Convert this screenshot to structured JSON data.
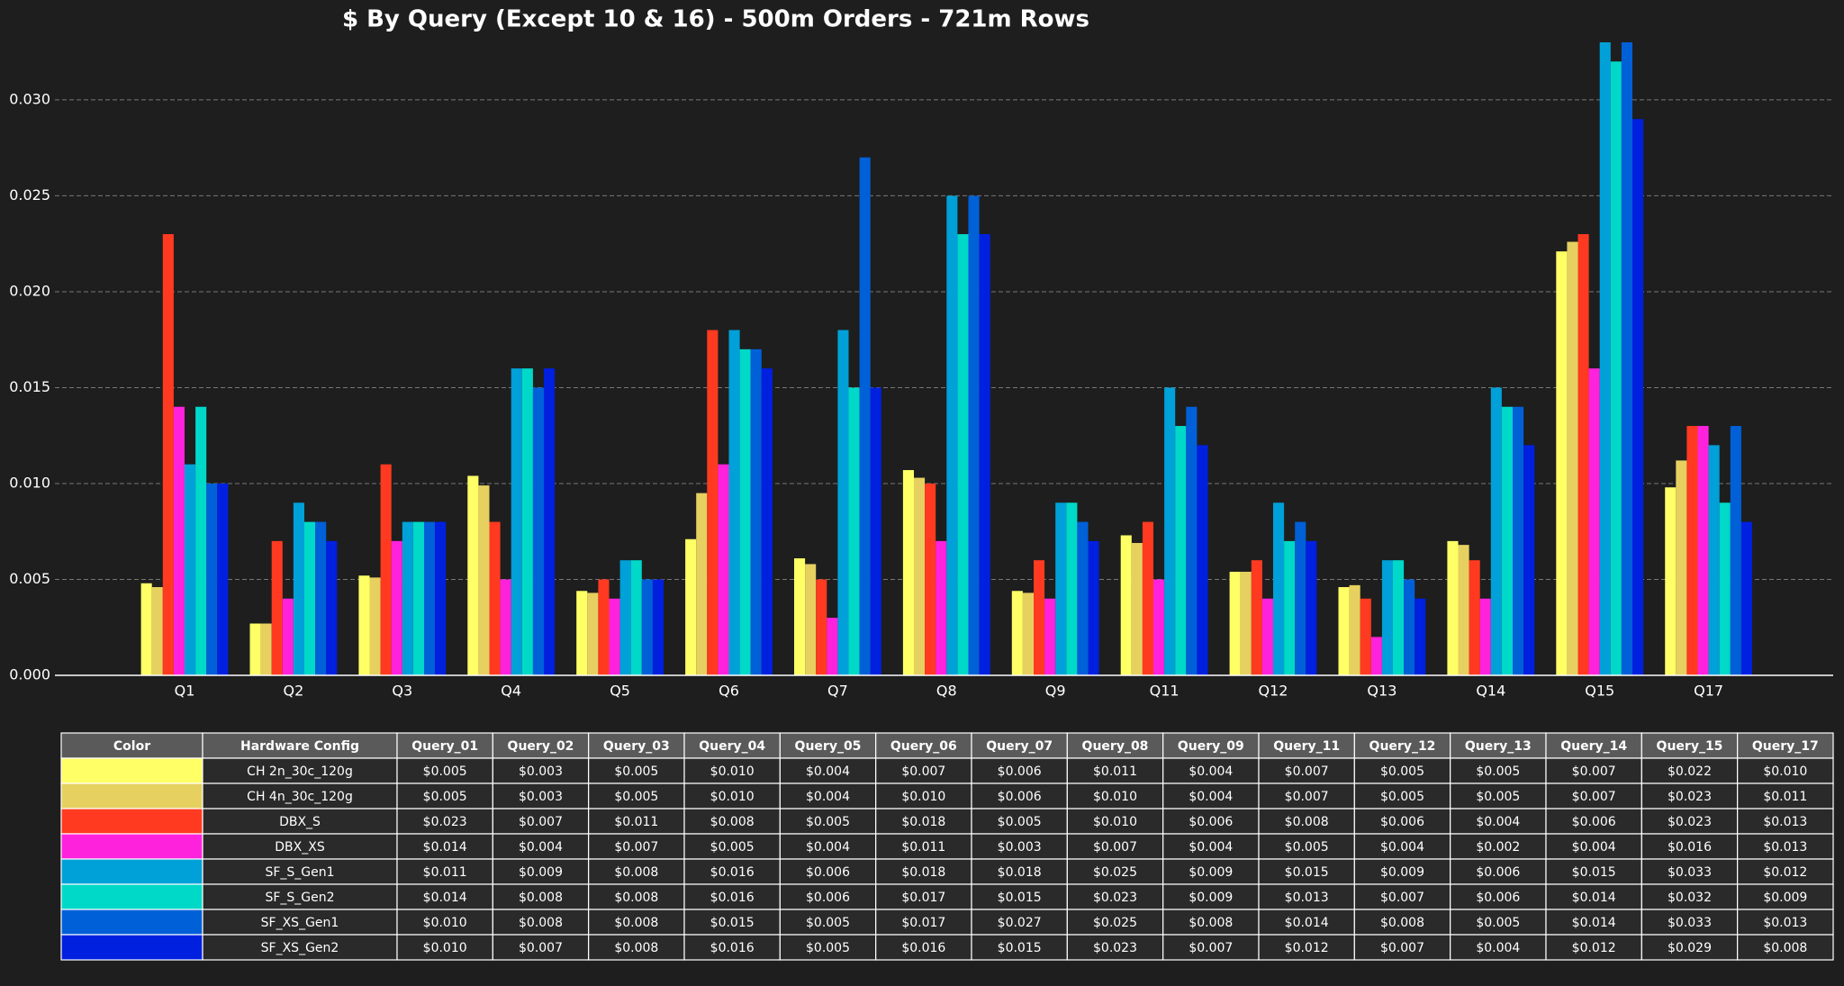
{
  "chart_data": {
    "type": "bar",
    "title": "$ By Query (Except 10 & 16) - 500m Orders - 721m Rows",
    "categories": [
      "Q1",
      "Q2",
      "Q3",
      "Q4",
      "Q5",
      "Q6",
      "Q7",
      "Q8",
      "Q9",
      "Q11",
      "Q12",
      "Q13",
      "Q14",
      "Q15",
      "Q17"
    ],
    "ylim": [
      0,
      0.033
    ],
    "yticks": [
      {
        "value": 0,
        "label": "0.000"
      },
      {
        "value": 0.005,
        "label": "0.005"
      },
      {
        "value": 0.01,
        "label": "0.010"
      },
      {
        "value": 0.015,
        "label": "0.015"
      },
      {
        "value": 0.02,
        "label": "0.020"
      },
      {
        "value": 0.025,
        "label": "0.025"
      },
      {
        "value": 0.03,
        "label": "0.030"
      }
    ],
    "grid": true,
    "table_header": [
      "Color",
      "Hardware Config",
      "Query_01",
      "Query_02",
      "Query_03",
      "Query_04",
      "Query_05",
      "Query_06",
      "Query_07",
      "Query_08",
      "Query_09",
      "Query_11",
      "Query_12",
      "Query_13",
      "Query_14",
      "Query_15",
      "Query_17"
    ],
    "series": [
      {
        "name": "CH 2n_30c_120g",
        "color": "#ffff66",
        "values": [
          0.0048,
          0.0027,
          0.0052,
          0.0104,
          0.0044,
          0.0071,
          0.0061,
          0.0107,
          0.0044,
          0.0073,
          0.0054,
          0.0046,
          0.007,
          0.0221,
          0.0098
        ],
        "value_labels": [
          "$0.005",
          "$0.003",
          "$0.005",
          "$0.010",
          "$0.004",
          "$0.007",
          "$0.006",
          "$0.011",
          "$0.004",
          "$0.007",
          "$0.005",
          "$0.005",
          "$0.007",
          "$0.022",
          "$0.010"
        ]
      },
      {
        "name": "CH 4n_30c_120g",
        "color": "#e6d060",
        "values": [
          0.0046,
          0.0027,
          0.0051,
          0.0099,
          0.0043,
          0.0095,
          0.0058,
          0.0103,
          0.0043,
          0.0069,
          0.0054,
          0.0047,
          0.0068,
          0.0226,
          0.0112
        ],
        "value_labels": [
          "$0.005",
          "$0.003",
          "$0.005",
          "$0.010",
          "$0.004",
          "$0.010",
          "$0.006",
          "$0.010",
          "$0.004",
          "$0.007",
          "$0.005",
          "$0.005",
          "$0.007",
          "$0.023",
          "$0.011"
        ]
      },
      {
        "name": "DBX_S",
        "color": "#ff3a20",
        "values": [
          0.023,
          0.007,
          0.011,
          0.008,
          0.005,
          0.018,
          0.005,
          0.01,
          0.006,
          0.008,
          0.006,
          0.004,
          0.006,
          0.023,
          0.013
        ],
        "value_labels": [
          "$0.023",
          "$0.007",
          "$0.011",
          "$0.008",
          "$0.005",
          "$0.018",
          "$0.005",
          "$0.010",
          "$0.006",
          "$0.008",
          "$0.006",
          "$0.004",
          "$0.006",
          "$0.023",
          "$0.013"
        ]
      },
      {
        "name": "DBX_XS",
        "color": "#ff22dd",
        "values": [
          0.014,
          0.004,
          0.007,
          0.005,
          0.004,
          0.011,
          0.003,
          0.007,
          0.004,
          0.005,
          0.004,
          0.002,
          0.004,
          0.016,
          0.013
        ],
        "value_labels": [
          "$0.014",
          "$0.004",
          "$0.007",
          "$0.005",
          "$0.004",
          "$0.011",
          "$0.003",
          "$0.007",
          "$0.004",
          "$0.005",
          "$0.004",
          "$0.002",
          "$0.004",
          "$0.016",
          "$0.013"
        ]
      },
      {
        "name": "SF_S_Gen1",
        "color": "#00a0d8",
        "values": [
          0.011,
          0.009,
          0.008,
          0.016,
          0.006,
          0.018,
          0.018,
          0.025,
          0.009,
          0.015,
          0.009,
          0.006,
          0.015,
          0.033,
          0.012
        ],
        "value_labels": [
          "$0.011",
          "$0.009",
          "$0.008",
          "$0.016",
          "$0.006",
          "$0.018",
          "$0.018",
          "$0.025",
          "$0.009",
          "$0.015",
          "$0.009",
          "$0.006",
          "$0.015",
          "$0.033",
          "$0.012"
        ]
      },
      {
        "name": "SF_S_Gen2",
        "color": "#00d8c8",
        "values": [
          0.014,
          0.008,
          0.008,
          0.016,
          0.006,
          0.017,
          0.015,
          0.023,
          0.009,
          0.013,
          0.007,
          0.006,
          0.014,
          0.032,
          0.009
        ],
        "value_labels": [
          "$0.014",
          "$0.008",
          "$0.008",
          "$0.016",
          "$0.006",
          "$0.017",
          "$0.015",
          "$0.023",
          "$0.009",
          "$0.013",
          "$0.007",
          "$0.006",
          "$0.014",
          "$0.032",
          "$0.009"
        ]
      },
      {
        "name": "SF_XS_Gen1",
        "color": "#0060d8",
        "values": [
          0.01,
          0.008,
          0.008,
          0.015,
          0.005,
          0.017,
          0.027,
          0.025,
          0.008,
          0.014,
          0.008,
          0.005,
          0.014,
          0.033,
          0.013
        ],
        "value_labels": [
          "$0.010",
          "$0.008",
          "$0.008",
          "$0.015",
          "$0.005",
          "$0.017",
          "$0.027",
          "$0.025",
          "$0.008",
          "$0.014",
          "$0.008",
          "$0.005",
          "$0.014",
          "$0.033",
          "$0.013"
        ]
      },
      {
        "name": "SF_XS_Gen2",
        "color": "#0020e0",
        "values": [
          0.01,
          0.007,
          0.008,
          0.016,
          0.005,
          0.016,
          0.015,
          0.023,
          0.007,
          0.012,
          0.007,
          0.004,
          0.012,
          0.029,
          0.008
        ],
        "value_labels": [
          "$0.010",
          "$0.007",
          "$0.008",
          "$0.016",
          "$0.005",
          "$0.016",
          "$0.015",
          "$0.023",
          "$0.007",
          "$0.012",
          "$0.007",
          "$0.004",
          "$0.012",
          "$0.029",
          "$0.008"
        ]
      }
    ]
  }
}
